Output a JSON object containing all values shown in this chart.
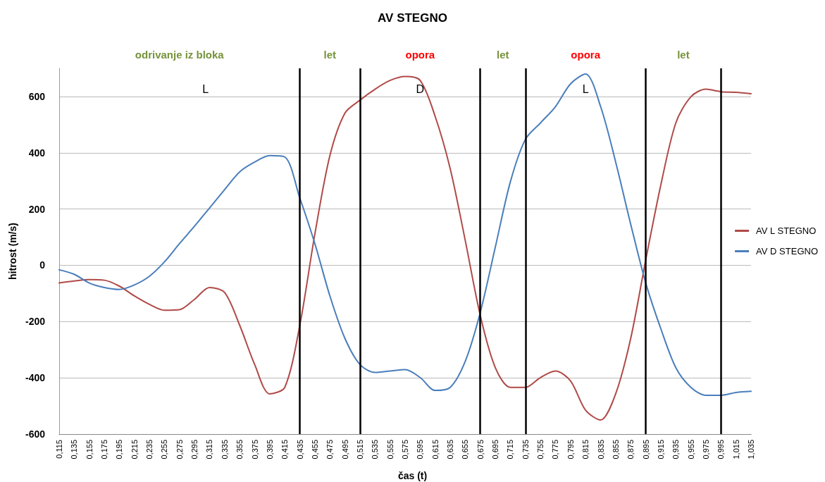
{
  "chart_data": {
    "type": "line",
    "title": "AV STEGNO",
    "xlabel": "čas (t)",
    "ylabel": "hitrost (m/s)",
    "categories": [
      "0,115",
      "0,135",
      "0,155",
      "0,175",
      "0,195",
      "0,215",
      "0,235",
      "0,255",
      "0,275",
      "0,295",
      "0,315",
      "0,335",
      "0,355",
      "0,375",
      "0,395",
      "0,415",
      "0,435",
      "0,455",
      "0,475",
      "0,495",
      "0,515",
      "0,535",
      "0,555",
      "0,575",
      "0,595",
      "0,615",
      "0,635",
      "0,655",
      "0,675",
      "0,695",
      "0,715",
      "0,735",
      "0,755",
      "0,775",
      "0,795",
      "0,815",
      "0,835",
      "0,855",
      "0,875",
      "0,895",
      "0,915",
      "0,935",
      "0,955",
      "0,975",
      "0,995",
      "1,015",
      "1,035"
    ],
    "series": [
      {
        "name": "AV L STEGNO",
        "color": "#b04a48",
        "values": [
          -63,
          -56,
          -51,
          -53,
          -74,
          -109,
          -139,
          -160,
          -158,
          -121,
          -79,
          -97,
          -213,
          -353,
          -457,
          -434,
          -213,
          111,
          390,
          541,
          587,
          626,
          657,
          671,
          657,
          529,
          343,
          88,
          -179,
          -364,
          -434,
          -434,
          -399,
          -376,
          -411,
          -515,
          -550,
          -457,
          -260,
          19,
          285,
          506,
          599,
          626,
          617,
          615,
          610
        ]
      },
      {
        "name": "AV D STEGNO",
        "color": "#4a7ebb",
        "values": [
          -16,
          -32,
          -63,
          -79,
          -86,
          -70,
          -39,
          12,
          77,
          139,
          204,
          269,
          332,
          367,
          390,
          385,
          239,
          77,
          -109,
          -260,
          -353,
          -381,
          -376,
          -371,
          -399,
          -445,
          -434,
          -341,
          -167,
          65,
          297,
          448,
          506,
          564,
          645,
          680,
          564,
          367,
          146,
          -63,
          -225,
          -364,
          -434,
          -462,
          -462,
          -452,
          -448
        ]
      }
    ],
    "ylim": [
      -600,
      700
    ],
    "yticks": [
      -600,
      -400,
      -200,
      0,
      200,
      400,
      600
    ],
    "grid": "y",
    "legend": "right",
    "marker": "none",
    "ref_lines": [
      {
        "axis": "x",
        "value": "0,435",
        "color": "#000000"
      },
      {
        "axis": "x",
        "value": "0,515",
        "color": "#000000"
      },
      {
        "axis": "x",
        "value": "0,675",
        "color": "#000000"
      },
      {
        "axis": "x",
        "value": "0,735",
        "color": "#000000"
      },
      {
        "axis": "x",
        "value": "0,895",
        "color": "#000000"
      },
      {
        "axis": "x",
        "value": "0,995",
        "color": "#000000"
      }
    ],
    "annotations": [
      "odrivanje iz bloka",
      "let",
      "opora",
      "let",
      "opora",
      "let",
      "L",
      "D",
      "L"
    ]
  }
}
